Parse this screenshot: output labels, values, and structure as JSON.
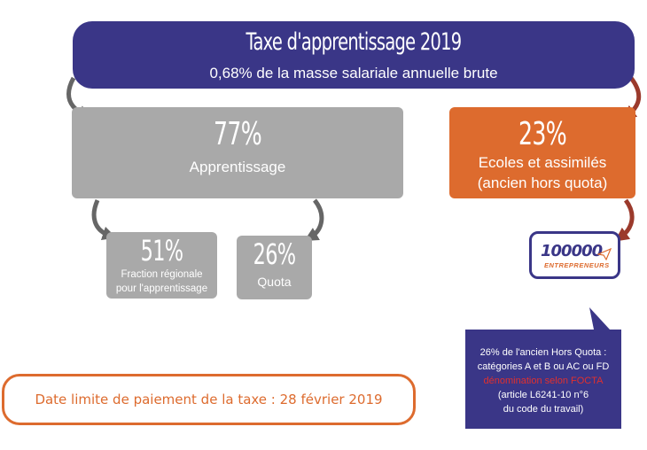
{
  "header": {
    "title": "Taxe d'apprentissage 2019",
    "subtitle": "0,68% de la masse salariale annuelle brute"
  },
  "apprentissage": {
    "percent": "77%",
    "label": "Apprentissage"
  },
  "ecoles": {
    "percent": "23%",
    "line1": "Ecoles et assimilés",
    "line2": "(ancien hors quota)"
  },
  "fraction_regionale": {
    "percent": "51%",
    "line1": "Fraction régionale",
    "line2": "pour l'apprentissage"
  },
  "quota": {
    "percent": "26%",
    "label": "Quota"
  },
  "logo": {
    "number": "100000",
    "text": "ENTREPRENEURS"
  },
  "note": {
    "line1": "26% de l'ancien Hors Quota :",
    "line2": "catégories A et B ou AC ou FD",
    "line3": "dénomination selon FOCTA",
    "line4": "(article L6241-10 n°6",
    "line5": "du code du travail)"
  },
  "deadline": {
    "text": "Date limite de paiement de la taxe : 28 février 2019"
  },
  "colors": {
    "navy": "#3a3687",
    "orange": "#dd6b2e",
    "grey": "#a9a9a9",
    "red_arrow": "#9b3a2c",
    "dark_arrow": "#666666"
  }
}
